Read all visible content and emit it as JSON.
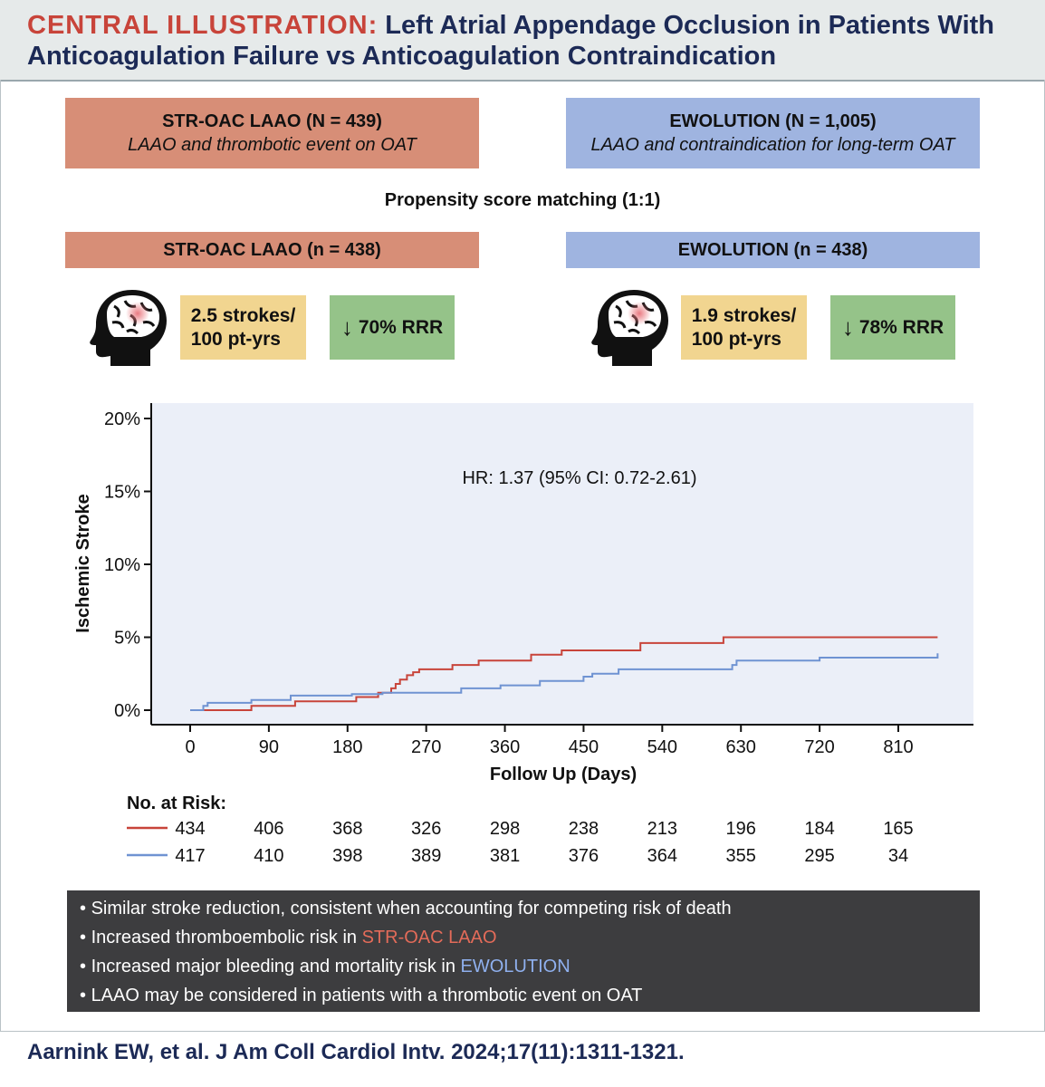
{
  "header": {
    "label": "CENTRAL ILLUSTRATION:",
    "title_line1": "Left Atrial Appendage Occlusion in Patients With",
    "title_line2": "Anticoagulation Failure vs Anticoagulation Contraindication"
  },
  "cohorts": {
    "left": {
      "name": "STR-OAC LAAO (N = 439)",
      "desc": "LAAO and thrombotic event on OAT",
      "matched": "STR-OAC LAAO (n = 438)",
      "stroke_rate_l1": "2.5 strokes/",
      "stroke_rate_l2": "100 pt-yrs",
      "rrr": "70% RRR"
    },
    "right": {
      "name": "EWOLUTION (N = 1,005)",
      "desc": "LAAO and contraindication for long-term OAT",
      "matched": "EWOLUTION (n = 438)",
      "stroke_rate_l1": "1.9 strokes/",
      "stroke_rate_l2": "100 pt-yrs",
      "rrr": "78% RRR"
    },
    "matching": "Propensity score matching (1:1)"
  },
  "icons": {
    "brain": "head-with-brain-icon",
    "arrow": "down-arrow-icon"
  },
  "colors": {
    "red": "#c8443a",
    "blue": "#6f93d2",
    "plot_bg": "#ebeff8"
  },
  "chart_data": {
    "type": "line",
    "title": "",
    "annotation": "HR: 1.37 (95% CI: 0.72-2.61)",
    "xlabel": "Follow Up (Days)",
    "ylabel": "Ischemic Stroke",
    "xlim": [
      -30,
      870
    ],
    "ylim": [
      0,
      20.5
    ],
    "x_ticks": [
      0,
      90,
      180,
      270,
      360,
      450,
      540,
      630,
      720,
      810
    ],
    "y_ticks": [
      0,
      5,
      10,
      15,
      20
    ],
    "y_tick_labels": [
      "0%",
      "5%",
      "10%",
      "15%",
      "20%"
    ],
    "series": [
      {
        "name": "STR-OAC LAAO",
        "color": "#c8443a",
        "step": true,
        "x": [
          0,
          20,
          70,
          120,
          190,
          215,
          230,
          235,
          240,
          248,
          255,
          262,
          270,
          300,
          330,
          390,
          425,
          515,
          610,
          855
        ],
        "y": [
          0,
          0,
          0.3,
          0.6,
          0.9,
          1.2,
          1.5,
          1.8,
          2.1,
          2.4,
          2.6,
          2.8,
          2.8,
          3.1,
          3.4,
          3.8,
          4.1,
          4.6,
          5.0,
          5.0
        ]
      },
      {
        "name": "EWOLUTION",
        "color": "#6f93d2",
        "step": true,
        "x": [
          0,
          15,
          20,
          70,
          115,
          185,
          220,
          310,
          355,
          400,
          450,
          460,
          490,
          620,
          625,
          720,
          855
        ],
        "y": [
          0,
          0.3,
          0.5,
          0.7,
          1.0,
          1.1,
          1.2,
          1.5,
          1.7,
          2.0,
          2.3,
          2.5,
          2.8,
          3.1,
          3.4,
          3.6,
          3.9
        ]
      }
    ]
  },
  "risk_table": {
    "title": "No. at Risk:",
    "rows": [
      {
        "color": "#c8443a",
        "values": [
          "434",
          "406",
          "368",
          "326",
          "298",
          "238",
          "213",
          "196",
          "184",
          "165"
        ]
      },
      {
        "color": "#6f93d2",
        "values": [
          "417",
          "410",
          "398",
          "389",
          "381",
          "376",
          "364",
          "355",
          "295",
          "34"
        ]
      }
    ]
  },
  "bullets": [
    {
      "text": "Similar stroke reduction, consistent when accounting for competing risk of death",
      "highlight": ""
    },
    {
      "text": "Increased thromboembolic risk in ",
      "highlight": "STR-OAC LAAO",
      "hl_class": "hl-red"
    },
    {
      "text": "Increased major bleeding and mortality risk in ",
      "highlight": "EWOLUTION",
      "hl_class": "hl-blue"
    },
    {
      "text": "LAAO may be considered in patients with a thrombotic event on OAT",
      "highlight": ""
    }
  ],
  "citation": "Aarnink EW, et al. J Am Coll Cardiol Intv. 2024;17(11):1311-1321."
}
